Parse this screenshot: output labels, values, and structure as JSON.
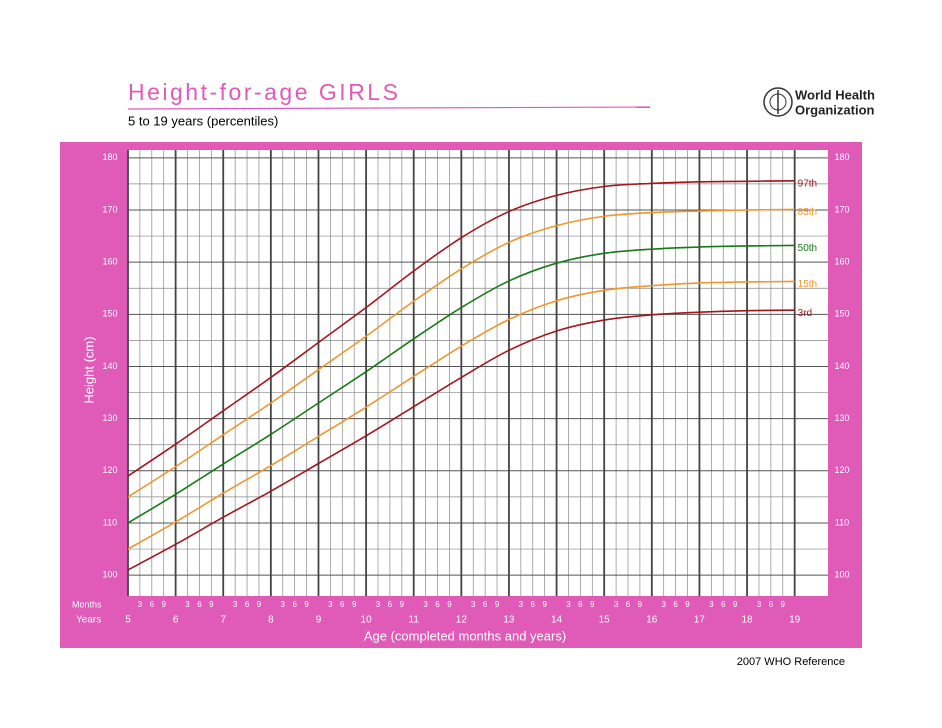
{
  "chart_data": {
    "type": "line",
    "title": "Height-for-age  GIRLS",
    "subtitle": "5 to 19 years (percentiles)",
    "organization": [
      "World Health",
      "Organization"
    ],
    "footer": "2007 WHO Reference",
    "xlabel": "Age (completed months and years)",
    "ylabel": "Height (cm)",
    "month_row_label": "Months",
    "year_row_label": "Years",
    "x": [
      5,
      6,
      7,
      8,
      9,
      10,
      11,
      12,
      13,
      14,
      15,
      16,
      17,
      18,
      19
    ],
    "series": [
      {
        "name": "97th",
        "color": "#a3151f",
        "values": [
          119.0,
          125.1,
          131.5,
          137.9,
          144.6,
          151.3,
          158.3,
          164.7,
          169.7,
          172.8,
          174.5,
          175.1,
          175.4,
          175.5,
          175.6
        ]
      },
      {
        "name": "85th",
        "color": "#f0962c",
        "values": [
          115.0,
          120.8,
          126.9,
          133.0,
          139.4,
          145.8,
          152.5,
          158.7,
          163.8,
          167.0,
          168.8,
          169.5,
          169.8,
          170.0,
          170.1
        ]
      },
      {
        "name": "50th",
        "color": "#167a16",
        "values": [
          110.0,
          115.5,
          121.3,
          127.0,
          133.0,
          139.0,
          145.3,
          151.3,
          156.4,
          159.8,
          161.7,
          162.5,
          162.9,
          163.1,
          163.2
        ]
      },
      {
        "name": "15th",
        "color": "#f0962c",
        "values": [
          105.0,
          110.2,
          115.7,
          121.0,
          126.6,
          132.2,
          138.1,
          143.9,
          149.0,
          152.6,
          154.6,
          155.5,
          156.0,
          156.2,
          156.3
        ]
      },
      {
        "name": "3rd",
        "color": "#a3151f",
        "values": [
          101.0,
          105.9,
          111.1,
          116.1,
          121.4,
          126.7,
          132.3,
          137.9,
          143.1,
          146.8,
          148.9,
          149.9,
          150.4,
          150.7,
          150.8
        ]
      }
    ],
    "xlim": [
      5,
      19.7
    ],
    "ylim": [
      96,
      181.5
    ],
    "xticks": [
      5,
      6,
      7,
      8,
      9,
      10,
      11,
      12,
      13,
      14,
      15,
      16,
      17,
      18,
      19
    ],
    "month_ticks": [
      {
        "value": 5.25,
        "label": "3"
      },
      {
        "value": 5.5,
        "label": "6"
      },
      {
        "value": 5.75,
        "label": "9"
      },
      {
        "value": 6.25,
        "label": "3"
      },
      {
        "value": 6.5,
        "label": "6"
      },
      {
        "value": 6.75,
        "label": "9"
      },
      {
        "value": 7.25,
        "label": "3"
      },
      {
        "value": 7.5,
        "label": "6"
      },
      {
        "value": 7.75,
        "label": "9"
      },
      {
        "value": 8.25,
        "label": "3"
      },
      {
        "value": 8.5,
        "label": "6"
      },
      {
        "value": 8.75,
        "label": "9"
      },
      {
        "value": 9.25,
        "label": "3"
      },
      {
        "value": 9.5,
        "label": "6"
      },
      {
        "value": 9.75,
        "label": "9"
      },
      {
        "value": 10.25,
        "label": "3"
      },
      {
        "value": 10.5,
        "label": "6"
      },
      {
        "value": 10.75,
        "label": "9"
      },
      {
        "value": 11.25,
        "label": "3"
      },
      {
        "value": 11.5,
        "label": "6"
      },
      {
        "value": 11.75,
        "label": "9"
      },
      {
        "value": 12.25,
        "label": "3"
      },
      {
        "value": 12.5,
        "label": "6"
      },
      {
        "value": 12.75,
        "label": "9"
      },
      {
        "value": 13.25,
        "label": "3"
      },
      {
        "value": 13.5,
        "label": "6"
      },
      {
        "value": 13.75,
        "label": "9"
      },
      {
        "value": 14.25,
        "label": "3"
      },
      {
        "value": 14.5,
        "label": "6"
      },
      {
        "value": 14.75,
        "label": "9"
      },
      {
        "value": 15.25,
        "label": "3"
      },
      {
        "value": 15.5,
        "label": "6"
      },
      {
        "value": 15.75,
        "label": "9"
      },
      {
        "value": 16.25,
        "label": "3"
      },
      {
        "value": 16.5,
        "label": "6"
      },
      {
        "value": 16.75,
        "label": "9"
      },
      {
        "value": 17.25,
        "label": "3"
      },
      {
        "value": 17.5,
        "label": "6"
      },
      {
        "value": 17.75,
        "label": "9"
      },
      {
        "value": 18.25,
        "label": "3"
      },
      {
        "value": 18.5,
        "label": "6"
      },
      {
        "value": 18.75,
        "label": "9"
      }
    ],
    "yticks": [
      100,
      110,
      120,
      130,
      140,
      150,
      160,
      170,
      180
    ],
    "yminor_ticks": [
      105,
      115,
      125,
      135,
      145,
      155,
      165,
      175
    ],
    "grid": true
  }
}
